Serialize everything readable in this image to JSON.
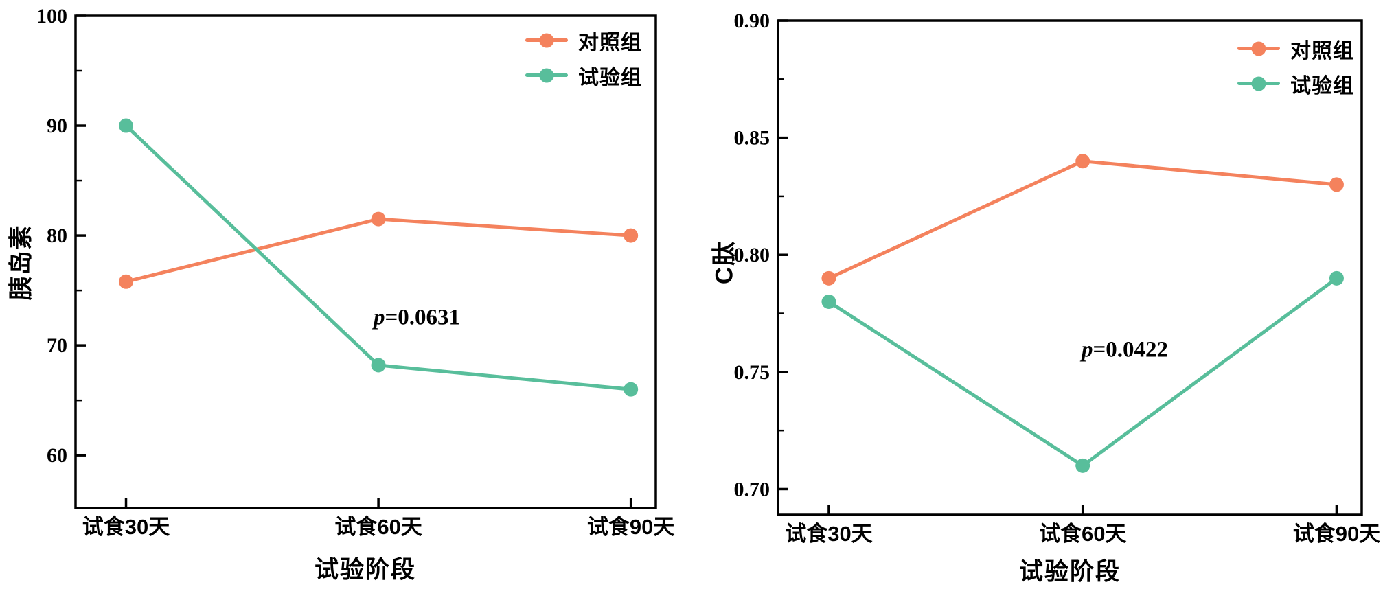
{
  "background": "#ffffff",
  "colors": {
    "axis": "#000000",
    "control": "#F4825D",
    "test": "#58BE9B",
    "text": "#000000"
  },
  "chart_data": [
    {
      "type": "line",
      "title": "",
      "ylabel": "胰岛素",
      "xlabel": "试验阶段",
      "categories": [
        "试食30天",
        "试食60天",
        "试食90天"
      ],
      "series": [
        {
          "name": "对照组",
          "color": "#F4825D",
          "values": [
            75.8,
            81.5,
            80.0
          ]
        },
        {
          "name": "试验组",
          "color": "#58BE9B",
          "values": [
            90.0,
            68.2,
            66.0
          ]
        }
      ],
      "ylim": [
        55.2,
        100
      ],
      "yticks": [
        60,
        70,
        80,
        90,
        100
      ],
      "ytick_labels": [
        "60",
        "70",
        "80",
        "90",
        "100"
      ],
      "minor_yticks": [
        65,
        75,
        85,
        95
      ],
      "grid": false,
      "legend_position": "upper right",
      "annotation": {
        "prefix": "p",
        "text": "=0.0631"
      }
    },
    {
      "type": "line",
      "title": "",
      "ylabel": "C肽",
      "xlabel": "试验阶段",
      "categories": [
        "试食30天",
        "试食60天",
        "试食90天"
      ],
      "series": [
        {
          "name": "对照组",
          "color": "#F4825D",
          "values": [
            0.79,
            0.84,
            0.83
          ]
        },
        {
          "name": "试验组",
          "color": "#58BE9B",
          "values": [
            0.78,
            0.71,
            0.79
          ]
        }
      ],
      "ylim": [
        0.689,
        0.9
      ],
      "yticks": [
        0.7,
        0.75,
        0.8,
        0.85,
        0.9
      ],
      "ytick_labels": [
        "0.70",
        "0.75",
        "0.80",
        "0.85",
        "0.90"
      ],
      "minor_yticks": [
        0.725,
        0.775,
        0.825,
        0.875
      ],
      "grid": false,
      "legend_position": "upper right",
      "annotation": {
        "prefix": "p",
        "text": "=0.0422"
      }
    }
  ]
}
